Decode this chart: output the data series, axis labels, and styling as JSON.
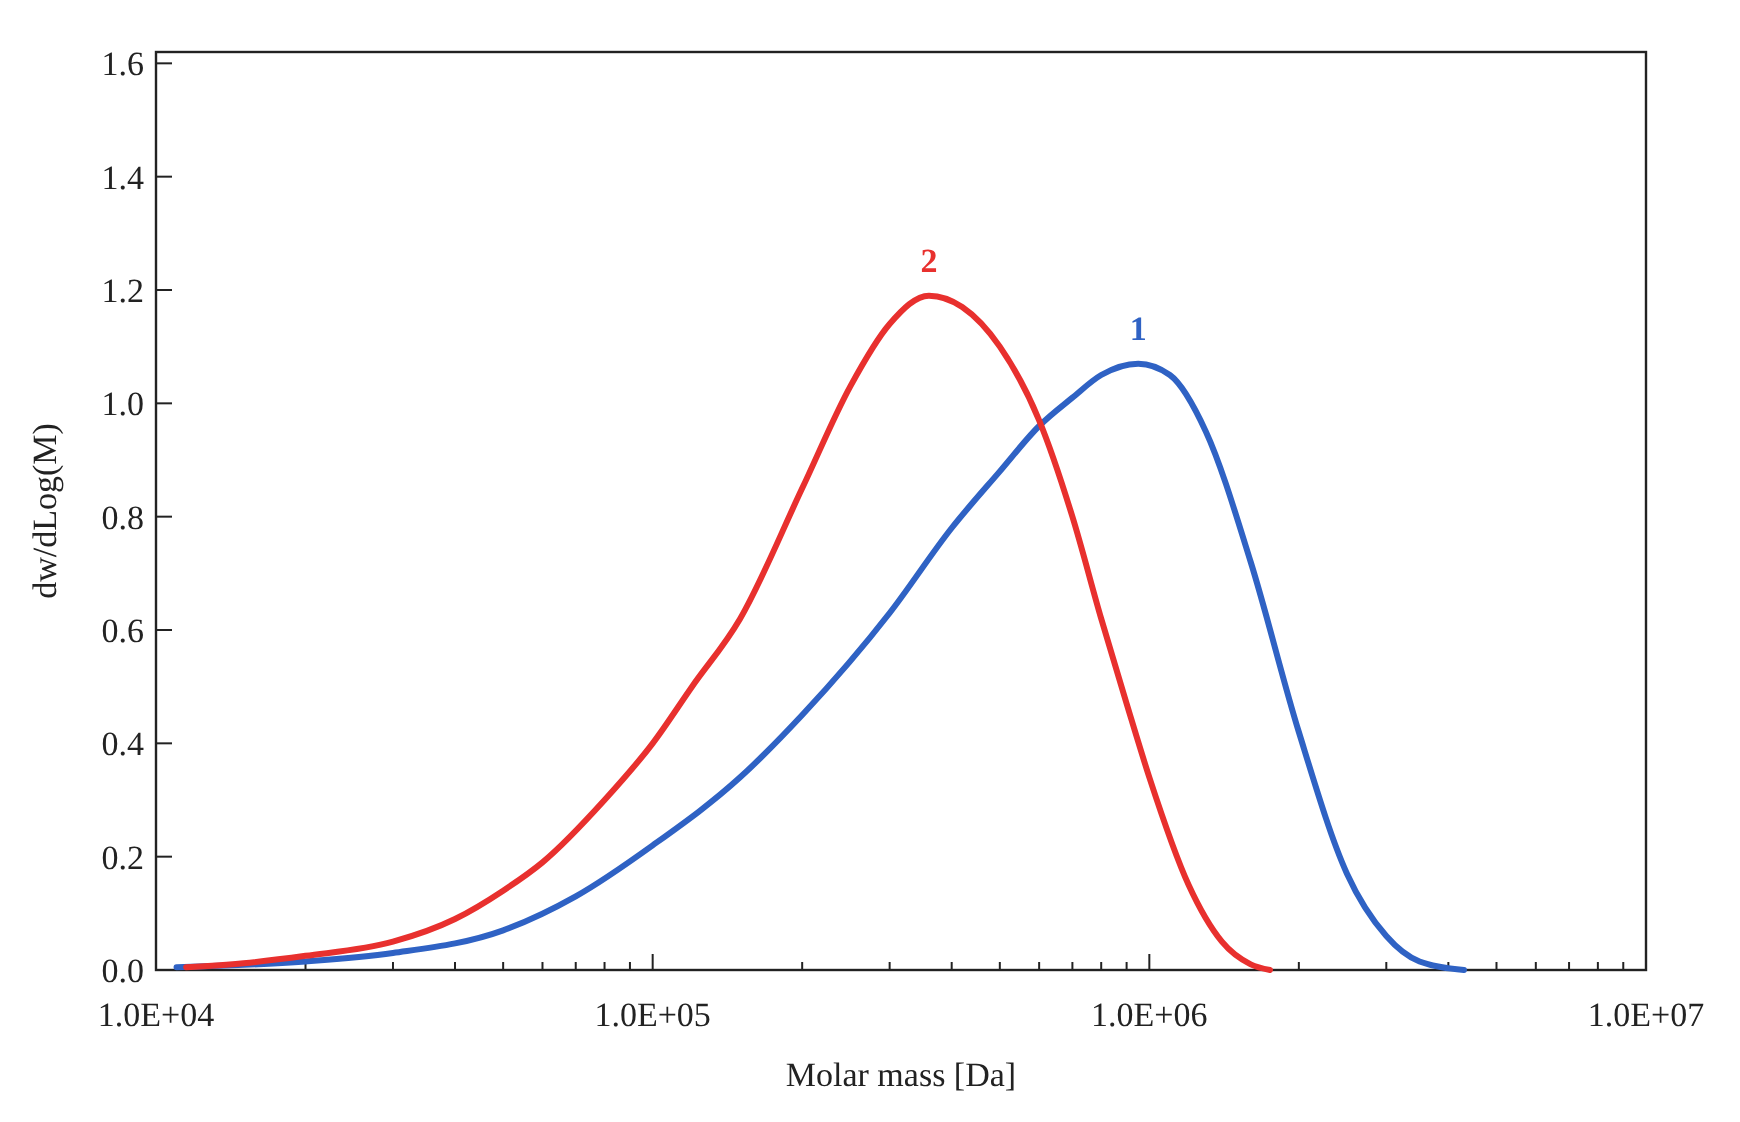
{
  "chart_data": {
    "type": "line",
    "xlabel": "Molar mass [Da]",
    "ylabel": "dw/dLog(M)",
    "log": "x",
    "grid": false,
    "marker": "none",
    "line_style": "solid",
    "xlim": [
      10000,
      10000000
    ],
    "xticks": [
      {
        "value": 10000,
        "label": "1.0E+04"
      },
      {
        "value": 100000,
        "label": "1.0E+05"
      },
      {
        "value": 1000000,
        "label": "1.0E+06"
      },
      {
        "value": 10000000,
        "label": "1.0E+07"
      }
    ],
    "ylim": [
      0,
      1.62
    ],
    "yticks": [
      {
        "value": 0,
        "label": "0.0"
      },
      {
        "value": 0.2,
        "label": "0.2"
      },
      {
        "value": 0.4,
        "label": "0.4"
      },
      {
        "value": 0.6,
        "label": "0.6"
      },
      {
        "value": 0.8,
        "label": "0.8"
      },
      {
        "value": 1,
        "label": "1.0"
      },
      {
        "value": 1.2,
        "label": "1.2"
      },
      {
        "value": 1.4,
        "label": "1.4"
      },
      {
        "value": 1.6,
        "label": "1.6"
      }
    ],
    "series": [
      {
        "name": "1",
        "color": "#2f62c4",
        "x": [
          11000,
          20000,
          30000,
          50000,
          70000,
          100000,
          150000,
          200000,
          300000,
          400000,
          500000,
          600000,
          700000,
          800000,
          950000,
          1100000,
          1300000,
          1600000,
          2000000,
          2500000,
          3000000,
          3500000,
          4300000
        ],
        "values": [
          0.005,
          0.015,
          0.03,
          0.07,
          0.13,
          0.22,
          0.34,
          0.45,
          0.63,
          0.78,
          0.88,
          0.96,
          1.01,
          1.05,
          1.07,
          1.05,
          0.95,
          0.72,
          0.42,
          0.17,
          0.06,
          0.015,
          0
        ]
      },
      {
        "name": "2",
        "color": "#e8302e",
        "x": [
          11500,
          15000,
          20000,
          30000,
          40000,
          50000,
          60000,
          80000,
          100000,
          120000,
          150000,
          200000,
          250000,
          300000,
          360000,
          420000,
          500000,
          600000,
          700000,
          800000,
          900000,
          1000000,
          1200000,
          1400000,
          1600000,
          1750000
        ],
        "values": [
          0.005,
          0.012,
          0.025,
          0.05,
          0.09,
          0.14,
          0.19,
          0.3,
          0.4,
          0.5,
          0.62,
          0.85,
          1.03,
          1.14,
          1.19,
          1.17,
          1.1,
          0.97,
          0.8,
          0.62,
          0.47,
          0.34,
          0.15,
          0.05,
          0.01,
          0
        ]
      }
    ]
  }
}
